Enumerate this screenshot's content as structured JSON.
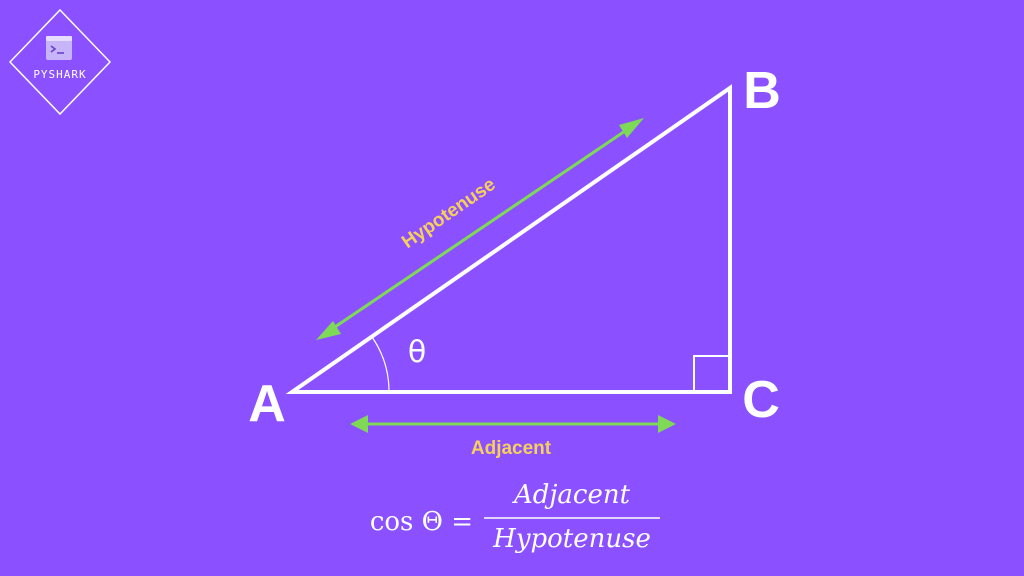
{
  "logo": {
    "brand": "PYSHARK",
    "icon": "terminal-icon"
  },
  "vertices": {
    "a": "A",
    "b": "B",
    "c": "C"
  },
  "angle": {
    "symbol": "θ"
  },
  "sides": {
    "hypotenuse": "Hypotenuse",
    "adjacent": "Adjacent"
  },
  "formula": {
    "lhs": "cos Θ =",
    "numerator": "Adjacent",
    "denominator": "Hypotenuse"
  },
  "colors": {
    "background": "#8B50FF",
    "lines": "#FFFFFF",
    "arrows": "#7ED957",
    "side_labels": "#F7CF5C"
  }
}
